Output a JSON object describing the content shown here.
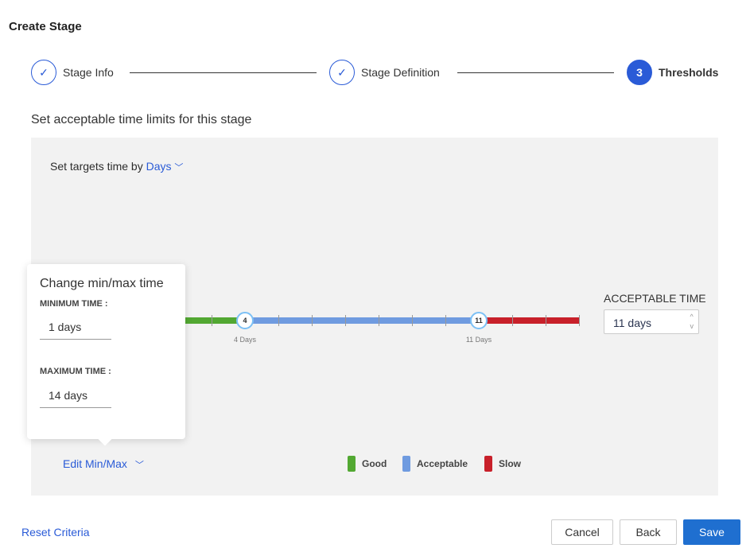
{
  "title": "Create Stage",
  "steps": [
    {
      "label": "Stage Info",
      "state": "done"
    },
    {
      "label": "Stage Definition",
      "state": "done"
    },
    {
      "number": "3",
      "label": "Thresholds",
      "state": "active"
    }
  ],
  "subtitle": "Set acceptable time limits for this stage",
  "targets": {
    "prefix": "Set targets time by",
    "unit": "Days"
  },
  "slider": {
    "min": 1,
    "max": 14,
    "good_until": 4,
    "acceptable_until": 11,
    "knob1": "4",
    "knob1_label": "4 Days",
    "knob2": "11",
    "knob2_label": "11 Days",
    "colors": {
      "good": "#52a832",
      "acceptable": "#6f9be0",
      "slow": "#c8202a"
    }
  },
  "acceptable": {
    "label": "ACCEPTABLE TIME",
    "value": "11 days"
  },
  "popover": {
    "title": "Change min/max time",
    "min_label": "MINIMUM TIME :",
    "min_value": "1 days",
    "max_label": "MAXIMUM TIME :",
    "max_value": "14 days"
  },
  "edit_minmax": "Edit Min/Max",
  "legend": [
    {
      "label": "Good",
      "color": "#52a832"
    },
    {
      "label": "Acceptable",
      "color": "#6f9be0"
    },
    {
      "label": "Slow",
      "color": "#c8202a"
    }
  ],
  "footer": {
    "reset": "Reset Criteria",
    "cancel": "Cancel",
    "back": "Back",
    "save": "Save"
  }
}
